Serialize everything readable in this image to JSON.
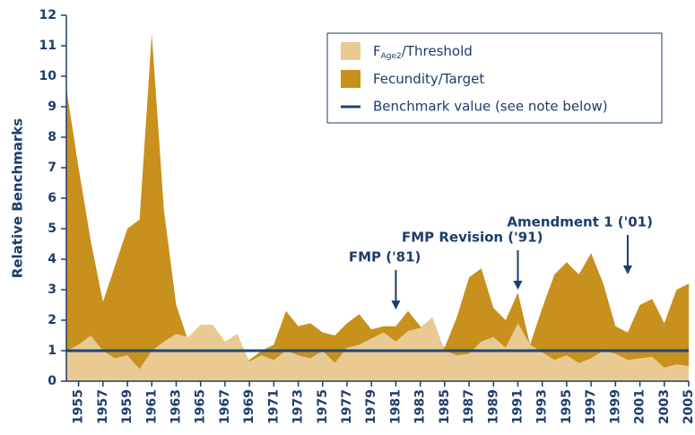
{
  "chart_data": {
    "type": "area",
    "ylabel": "Relative Benchmarks",
    "xlim": [
      1954,
      2005
    ],
    "ylim": [
      0,
      12
    ],
    "yticks": [
      0,
      1,
      2,
      3,
      4,
      5,
      6,
      7,
      8,
      9,
      10,
      11,
      12
    ],
    "xticks": [
      1955,
      1957,
      1959,
      1961,
      1963,
      1965,
      1967,
      1969,
      1971,
      1973,
      1975,
      1977,
      1979,
      1981,
      1983,
      1985,
      1987,
      1989,
      1991,
      1993,
      1995,
      1997,
      1999,
      2001,
      2003,
      2005
    ],
    "x": [
      1954,
      1955,
      1956,
      1957,
      1958,
      1959,
      1960,
      1961,
      1962,
      1963,
      1964,
      1965,
      1966,
      1967,
      1968,
      1969,
      1970,
      1971,
      1972,
      1973,
      1974,
      1975,
      1976,
      1977,
      1978,
      1979,
      1980,
      1981,
      1982,
      1983,
      1984,
      1985,
      1986,
      1987,
      1988,
      1989,
      1990,
      1991,
      1992,
      1993,
      1994,
      1995,
      1996,
      1997,
      1998,
      1999,
      2000,
      2001,
      2002,
      2003,
      2004,
      2005
    ],
    "series": [
      {
        "name": [
          "Fecundity/Target"
        ],
        "color": "#c8901c",
        "values": [
          9.6,
          7.0,
          4.6,
          2.6,
          3.8,
          5.0,
          5.3,
          11.4,
          5.6,
          2.5,
          1.3,
          1.2,
          1.0,
          0.9,
          0.8,
          0.7,
          1.0,
          1.2,
          2.3,
          1.8,
          1.9,
          1.6,
          1.5,
          1.9,
          2.2,
          1.7,
          1.8,
          1.8,
          2.3,
          1.8,
          1.5,
          1.1,
          2.1,
          3.4,
          3.7,
          2.4,
          2.0,
          2.9,
          1.2,
          2.4,
          3.5,
          3.9,
          3.5,
          4.2,
          3.2,
          1.8,
          1.6,
          2.5,
          2.7,
          1.9,
          3.0,
          3.2
        ]
      },
      {
        "name": [
          "F",
          "Age2",
          "/Threshold"
        ],
        "color": "#e8ca92",
        "values": [
          1.0,
          1.2,
          1.5,
          1.0,
          0.75,
          0.85,
          0.4,
          1.0,
          1.3,
          1.55,
          1.45,
          1.85,
          1.85,
          1.3,
          1.55,
          0.65,
          0.85,
          0.7,
          1.0,
          0.85,
          0.75,
          1.0,
          0.6,
          1.1,
          1.2,
          1.4,
          1.6,
          1.3,
          1.65,
          1.75,
          2.1,
          1.0,
          0.85,
          0.9,
          1.3,
          1.45,
          1.1,
          1.9,
          1.2,
          0.95,
          0.7,
          0.85,
          0.6,
          0.75,
          1.0,
          0.9,
          0.7,
          0.75,
          0.8,
          0.45,
          0.55,
          0.5
        ]
      }
    ],
    "reference_line": {
      "name": "Benchmark value (see note below)",
      "value": 1,
      "color": "#1d4675"
    },
    "annotations": [
      {
        "text": "FMP ('81)",
        "x": 1981,
        "y": 2.35
      },
      {
        "text": "FMP Revision ('91)",
        "x": 1991,
        "y": 3.0
      },
      {
        "text": "Amendment 1 ('01)",
        "x": 2000,
        "y": 3.5
      }
    ]
  }
}
